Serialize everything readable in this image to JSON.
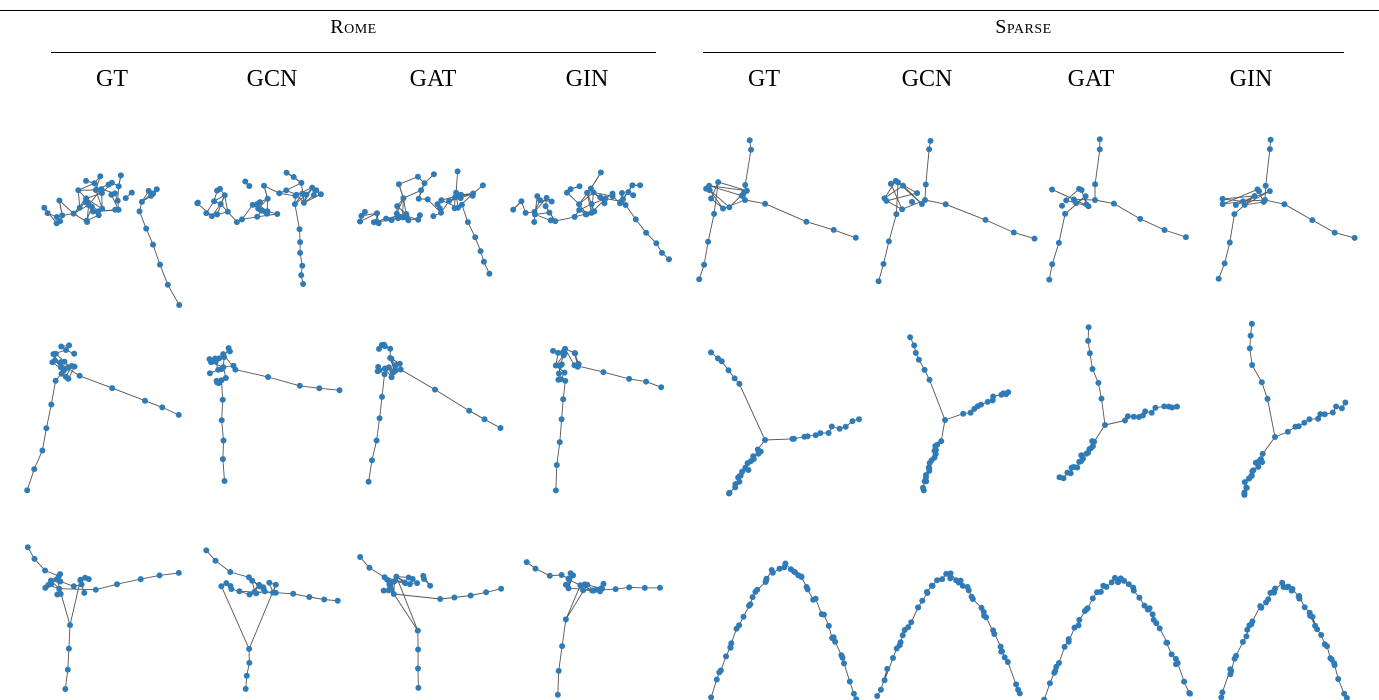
{
  "groups": {
    "rome": "Rome",
    "sparse": "Sparse"
  },
  "columns": {
    "rome": [
      "GT",
      "GCN",
      "GAT",
      "GIN"
    ],
    "sparse": [
      "GT",
      "GCN",
      "GAT",
      "GIN"
    ]
  },
  "colors": {
    "node": "#2f7bb7",
    "edge": "#555555",
    "rule": "#000000"
  },
  "figure": {
    "rows": 3,
    "cols_per_group": 4,
    "panels": [
      {
        "group": "rome",
        "row": 1,
        "col": "GT"
      },
      {
        "group": "rome",
        "row": 1,
        "col": "GCN"
      },
      {
        "group": "rome",
        "row": 1,
        "col": "GAT"
      },
      {
        "group": "rome",
        "row": 1,
        "col": "GIN"
      },
      {
        "group": "sparse",
        "row": 1,
        "col": "GT"
      },
      {
        "group": "sparse",
        "row": 1,
        "col": "GCN"
      },
      {
        "group": "sparse",
        "row": 1,
        "col": "GAT"
      },
      {
        "group": "sparse",
        "row": 1,
        "col": "GIN"
      },
      {
        "group": "rome",
        "row": 2,
        "col": "GT"
      },
      {
        "group": "rome",
        "row": 2,
        "col": "GCN"
      },
      {
        "group": "rome",
        "row": 2,
        "col": "GAT"
      },
      {
        "group": "rome",
        "row": 2,
        "col": "GIN"
      },
      {
        "group": "sparse",
        "row": 2,
        "col": "GT"
      },
      {
        "group": "sparse",
        "row": 2,
        "col": "GCN"
      },
      {
        "group": "sparse",
        "row": 2,
        "col": "GAT"
      },
      {
        "group": "sparse",
        "row": 2,
        "col": "GIN"
      },
      {
        "group": "rome",
        "row": 3,
        "col": "GT"
      },
      {
        "group": "rome",
        "row": 3,
        "col": "GCN"
      },
      {
        "group": "rome",
        "row": 3,
        "col": "GAT"
      },
      {
        "group": "rome",
        "row": 3,
        "col": "GIN"
      },
      {
        "group": "sparse",
        "row": 3,
        "col": "GT"
      },
      {
        "group": "sparse",
        "row": 3,
        "col": "GCN"
      },
      {
        "group": "sparse",
        "row": 3,
        "col": "GAT"
      },
      {
        "group": "sparse",
        "row": 3,
        "col": "GIN"
      }
    ]
  }
}
